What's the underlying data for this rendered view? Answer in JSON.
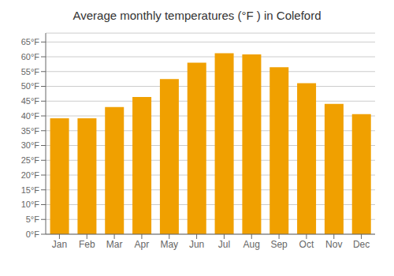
{
  "chart_data": {
    "type": "bar",
    "title": "Average monthly temperatures (°F ) in Coleford",
    "categories": [
      "Jan",
      "Feb",
      "Mar",
      "Apr",
      "May",
      "Jun",
      "Jul",
      "Aug",
      "Sep",
      "Oct",
      "Nov",
      "Dec"
    ],
    "values": [
      39.2,
      39.2,
      43.0,
      46.4,
      52.5,
      58.0,
      61.2,
      60.8,
      56.5,
      51.1,
      44.1,
      40.6
    ],
    "color": "#F0A000",
    "ylim": [
      0,
      68
    ],
    "yticks": [
      {
        "value": 0,
        "label": "0°F"
      },
      {
        "value": 5,
        "label": "5°F"
      },
      {
        "value": 10,
        "label": "10°F"
      },
      {
        "value": 15,
        "label": "15°F"
      },
      {
        "value": 20,
        "label": "20°F"
      },
      {
        "value": 25,
        "label": "25°F"
      },
      {
        "value": 30,
        "label": "30°F"
      },
      {
        "value": 35,
        "label": "35°F"
      },
      {
        "value": 40,
        "label": "40°F"
      },
      {
        "value": 45,
        "label": "45°F"
      },
      {
        "value": 50,
        "label": "50°F"
      },
      {
        "value": 55,
        "label": "55°F"
      },
      {
        "value": 60,
        "label": "60°F"
      },
      {
        "value": 65,
        "label": "65°F"
      }
    ],
    "grid": true
  }
}
